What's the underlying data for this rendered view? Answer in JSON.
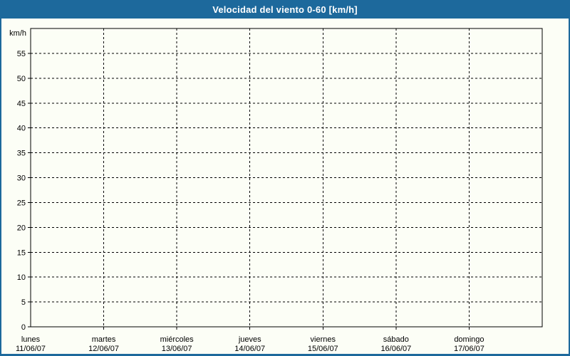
{
  "title_bar": {
    "title": "Velocidad del viento 0-60 [km/h]"
  },
  "colors": {
    "accent_blue": "#1d699c",
    "background": "#fcfef6",
    "axis_line": "#000000",
    "title_text": "#ffffff"
  },
  "chart_data": {
    "type": "line",
    "title": "Velocidad del viento 0-60 [km/h]",
    "y_unit_label": "km/h",
    "ylim": [
      0,
      60
    ],
    "ytick_step": 5,
    "yticks": [
      0,
      5,
      10,
      15,
      20,
      25,
      30,
      35,
      40,
      45,
      50,
      55
    ],
    "grid": "dashed",
    "legend": "none",
    "categories": [
      {
        "day": "lunes",
        "date": "11/06/07"
      },
      {
        "day": "martes",
        "date": "12/06/07"
      },
      {
        "day": "miércoles",
        "date": "13/06/07"
      },
      {
        "day": "jueves",
        "date": "14/06/07"
      },
      {
        "day": "viernes",
        "date": "15/06/07"
      },
      {
        "day": "sábado",
        "date": "16/06/07"
      },
      {
        "day": "domingo",
        "date": "17/06/07"
      }
    ],
    "series": []
  }
}
